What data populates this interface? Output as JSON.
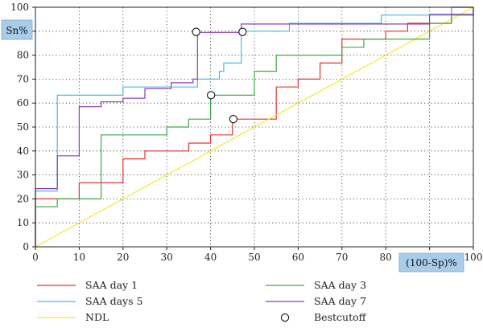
{
  "chart_data": {
    "type": "line",
    "xlabel": "(100-Sp)%",
    "ylabel": "Sn%",
    "xlim": [
      0,
      100
    ],
    "ylim": [
      0,
      100
    ],
    "x_ticks": [
      0,
      10,
      20,
      30,
      40,
      50,
      60,
      70,
      80,
      90,
      100
    ],
    "y_ticks": [
      0,
      10,
      20,
      30,
      40,
      50,
      60,
      70,
      80,
      90,
      100
    ],
    "grid": "dotted",
    "legend_position": "bottom",
    "series": [
      {
        "name": "SAA day 1",
        "color": "#e8322d",
        "points": [
          [
            0,
            0
          ],
          [
            0,
            20
          ],
          [
            10,
            20
          ],
          [
            10,
            26.7
          ],
          [
            20,
            26.7
          ],
          [
            20,
            36.7
          ],
          [
            25,
            36.7
          ],
          [
            25,
            40
          ],
          [
            35,
            40
          ],
          [
            35,
            43.3
          ],
          [
            40,
            43.3
          ],
          [
            40,
            46.7
          ],
          [
            45,
            46.7
          ],
          [
            45,
            53.3
          ],
          [
            55,
            53.3
          ],
          [
            55,
            66.7
          ],
          [
            60,
            66.7
          ],
          [
            60,
            70
          ],
          [
            65,
            70
          ],
          [
            65,
            76.7
          ],
          [
            70,
            76.7
          ],
          [
            70,
            86.7
          ],
          [
            80,
            86.7
          ],
          [
            80,
            90
          ],
          [
            85,
            90
          ],
          [
            85,
            93.3
          ],
          [
            95,
            93.3
          ],
          [
            95,
            100
          ],
          [
            100,
            100
          ]
        ]
      },
      {
        "name": "SAA days 5",
        "color": "#4ab6e6",
        "points": [
          [
            0,
            0
          ],
          [
            0,
            23.3
          ],
          [
            5,
            23.3
          ],
          [
            5,
            63.3
          ],
          [
            20,
            63.3
          ],
          [
            20,
            66.7
          ],
          [
            37,
            66.7
          ],
          [
            37,
            70
          ],
          [
            42,
            70
          ],
          [
            42,
            73.3
          ],
          [
            43,
            73.3
          ],
          [
            43,
            76.7
          ],
          [
            47,
            76.7
          ],
          [
            47,
            90
          ],
          [
            58,
            90
          ],
          [
            58,
            93.3
          ],
          [
            79,
            93.3
          ],
          [
            79,
            96.7
          ],
          [
            95,
            96.7
          ],
          [
            95,
            100
          ],
          [
            100,
            100
          ]
        ]
      },
      {
        "name": "NDL",
        "color": "#f3e82e",
        "points": [
          [
            0,
            0
          ],
          [
            100,
            100
          ]
        ]
      },
      {
        "name": "SAA day 3",
        "color": "#3aaa44",
        "points": [
          [
            0,
            0
          ],
          [
            0,
            16.7
          ],
          [
            5,
            16.7
          ],
          [
            5,
            20
          ],
          [
            15,
            20
          ],
          [
            15,
            46.7
          ],
          [
            30,
            46.7
          ],
          [
            30,
            50
          ],
          [
            35,
            50
          ],
          [
            35,
            53.3
          ],
          [
            40,
            53.3
          ],
          [
            40,
            63.3
          ],
          [
            50,
            63.3
          ],
          [
            50,
            73.3
          ],
          [
            55,
            73.3
          ],
          [
            55,
            80
          ],
          [
            70,
            80
          ],
          [
            70,
            83.3
          ],
          [
            75,
            83.3
          ],
          [
            75,
            86.7
          ],
          [
            90,
            86.7
          ],
          [
            90,
            93.3
          ],
          [
            95,
            93.3
          ],
          [
            95,
            96.7
          ],
          [
            100,
            96.7
          ],
          [
            100,
            100
          ]
        ]
      },
      {
        "name": "SAA day 7",
        "color": "#8e3ab8",
        "points": [
          [
            0,
            0
          ],
          [
            0,
            24.3
          ],
          [
            5,
            24.3
          ],
          [
            5,
            38
          ],
          [
            10,
            38
          ],
          [
            10,
            58.5
          ],
          [
            15,
            58.5
          ],
          [
            15,
            60.5
          ],
          [
            20,
            60.5
          ],
          [
            20,
            62
          ],
          [
            25,
            62
          ],
          [
            25,
            66
          ],
          [
            31,
            66
          ],
          [
            31,
            68.5
          ],
          [
            36,
            68.5
          ],
          [
            36,
            70
          ],
          [
            37,
            70
          ],
          [
            37,
            89.5
          ],
          [
            47,
            89.5
          ],
          [
            47,
            93
          ],
          [
            90,
            93
          ],
          [
            90,
            97
          ],
          [
            100,
            97
          ],
          [
            100,
            100
          ]
        ]
      }
    ],
    "best_cutoff": {
      "name": "Bestcutoff",
      "points": [
        [
          36.7,
          89.7
        ],
        [
          47.3,
          89.7
        ],
        [
          40.1,
          63.3
        ],
        [
          45.2,
          53.3
        ]
      ]
    },
    "legend": [
      {
        "label": "SAA day 1",
        "series": 0
      },
      {
        "label": "SAA day 3",
        "series": 3
      },
      {
        "label": "SAA days 5",
        "series": 1
      },
      {
        "label": "SAA day 7",
        "series": 4
      },
      {
        "label": "NDL",
        "series": 2
      },
      {
        "label": "Bestcutoff",
        "marker": "circle"
      }
    ]
  }
}
